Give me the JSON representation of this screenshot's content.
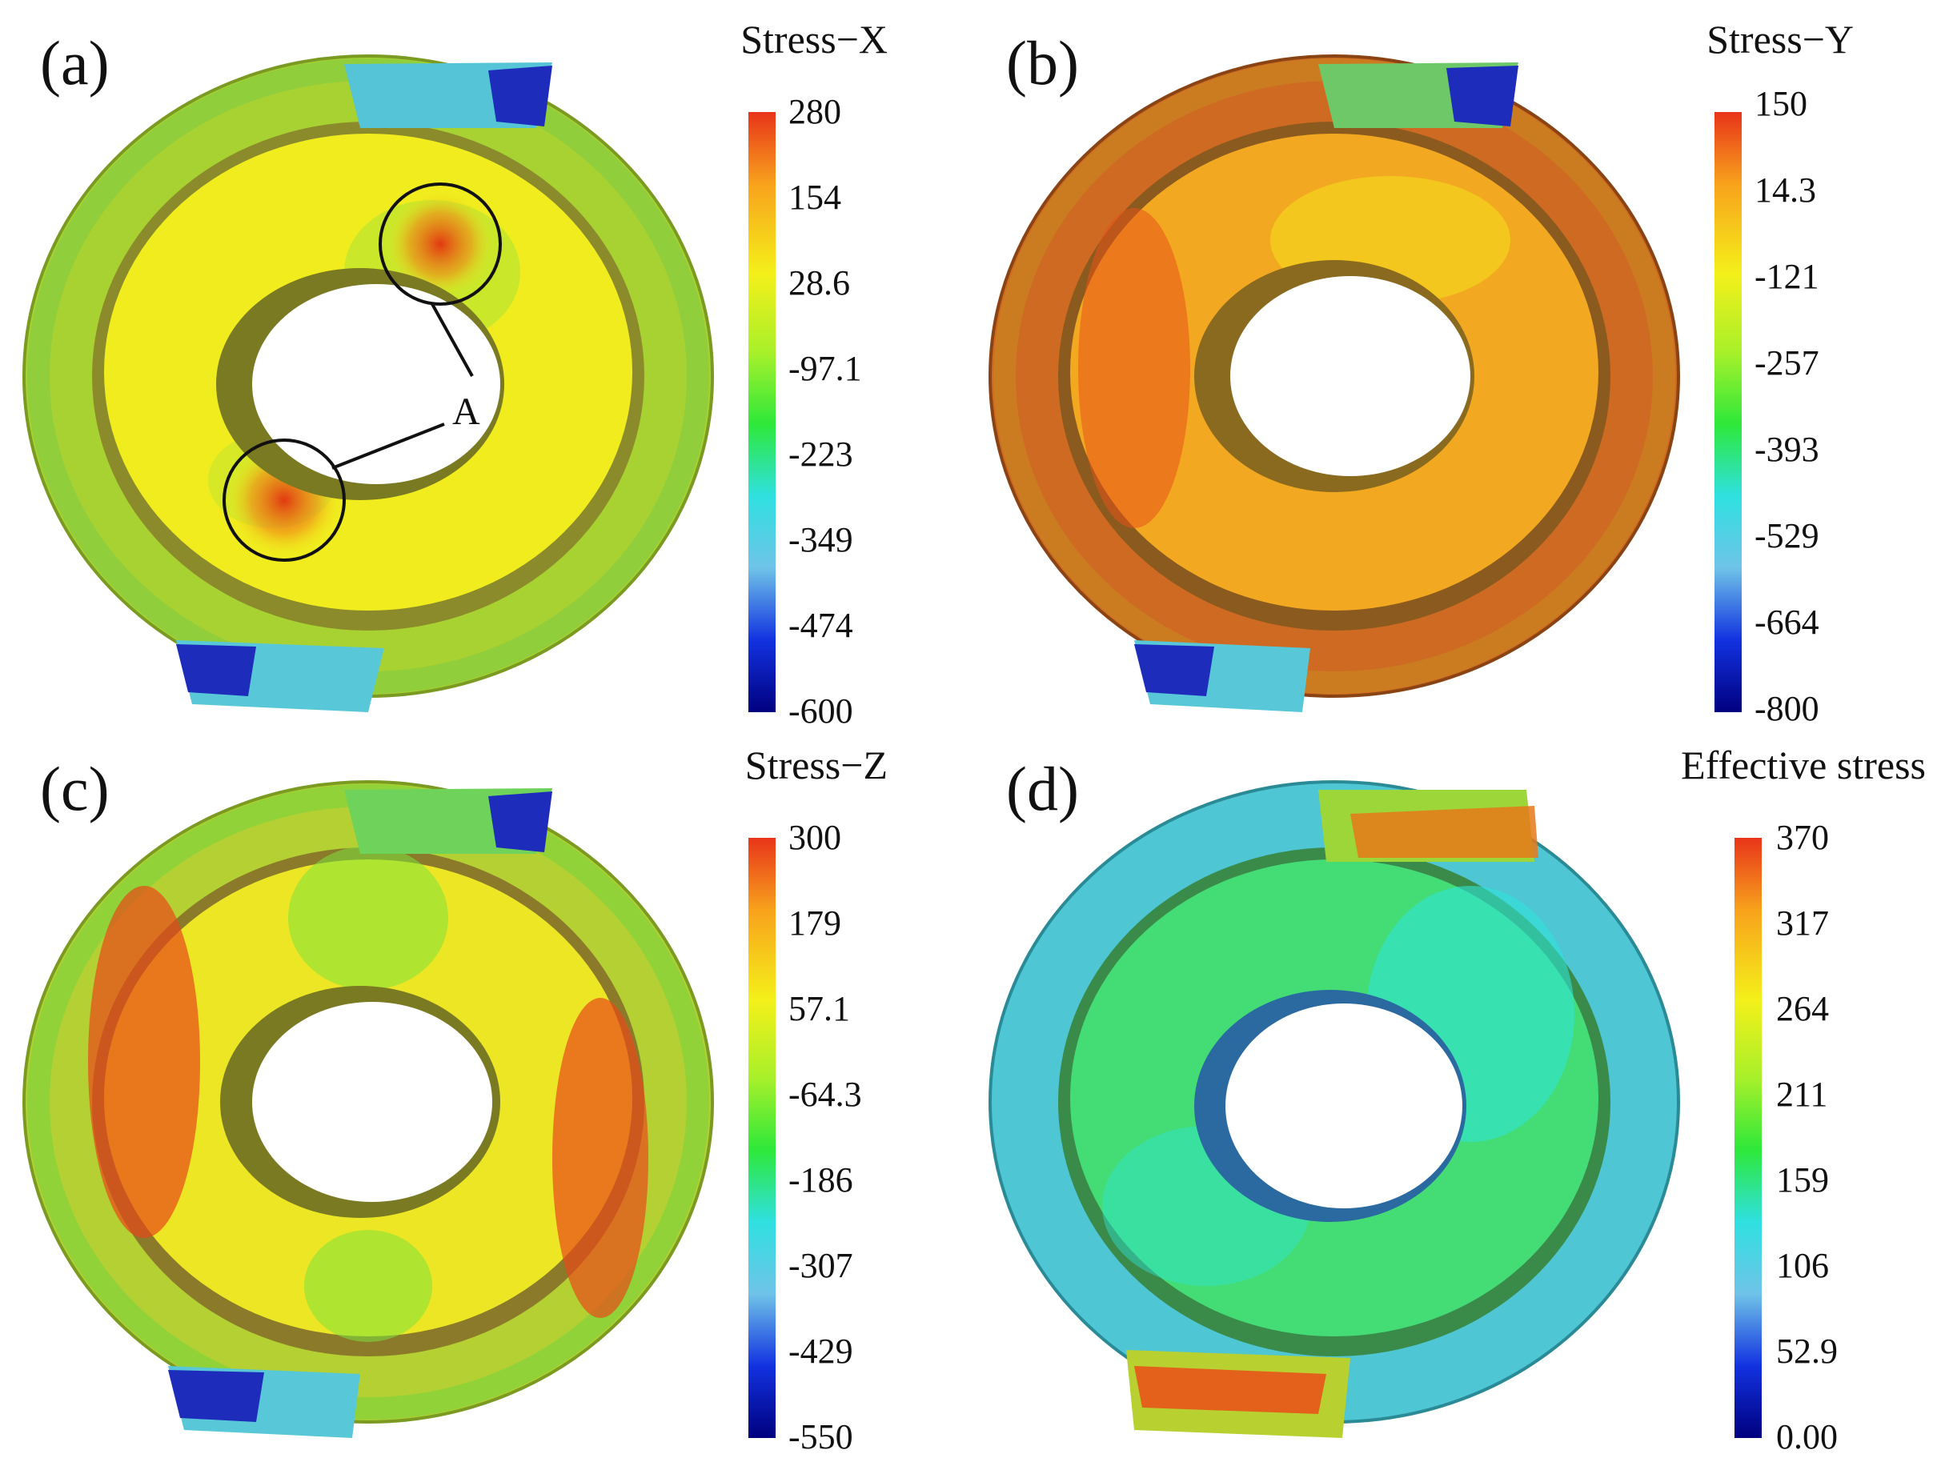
{
  "panels": [
    {
      "label": "(a)",
      "colorbar_title": "Stress−X",
      "ticks": [
        "280",
        "154",
        "28.6",
        "-97.1",
        "-223",
        "-349",
        "-474",
        "-600"
      ],
      "annotation": "A",
      "colors": {
        "inner_ring": "#f0ee1c",
        "outer_ring": "#b6d230",
        "outer_edge": "#8dd23a",
        "hot_spot": "#e33a10",
        "cold_patch": "#1f2bb8",
        "cool_patch": "#4fc6d8"
      }
    },
    {
      "label": "(b)",
      "colorbar_title": "Stress−Y",
      "ticks": [
        "150",
        "14.3",
        "-121",
        "-257",
        "-393",
        "-529",
        "-664",
        "-800"
      ],
      "colors": {
        "inner_ring": "#f2b520",
        "outer_ring": "#d2661e",
        "outer_edge": "#c8651f",
        "hot_spot": "#e8541a",
        "cold_patch": "#1f2bb8",
        "cool_patch": "#52c0d8"
      }
    },
    {
      "label": "(c)",
      "colorbar_title": "Stress−Z",
      "ticks": [
        "300",
        "179",
        "57.1",
        "-64.3",
        "-186",
        "-307",
        "-429",
        "-550"
      ],
      "colors": {
        "inner_ring": "#eae824",
        "outer_ring": "#c2d432",
        "outer_edge": "#7ad43c",
        "hot_spot": "#e83a12",
        "cold_patch": "#1f2bb8",
        "cool_patch": "#4fc6d8"
      }
    },
    {
      "label": "(d)",
      "colorbar_title": "Effective stress",
      "ticks": [
        "370",
        "317",
        "264",
        "211",
        "159",
        "106",
        "52.9",
        "0.00"
      ],
      "colors": {
        "inner_ring": "#46e07a",
        "outer_ring": "#4fc8d4",
        "outer_edge": "#4dc4d6",
        "hot_spot": "#e8561a",
        "cold_patch": "#e8561a",
        "cool_patch": "#2ee4d8"
      }
    }
  ],
  "colormap": [
    "#00007f",
    "#1232e0",
    "#6fc3e8",
    "#2fe0e0",
    "#2ee83a",
    "#a8f02a",
    "#f4f01a",
    "#f8a21c",
    "#e8341a"
  ]
}
